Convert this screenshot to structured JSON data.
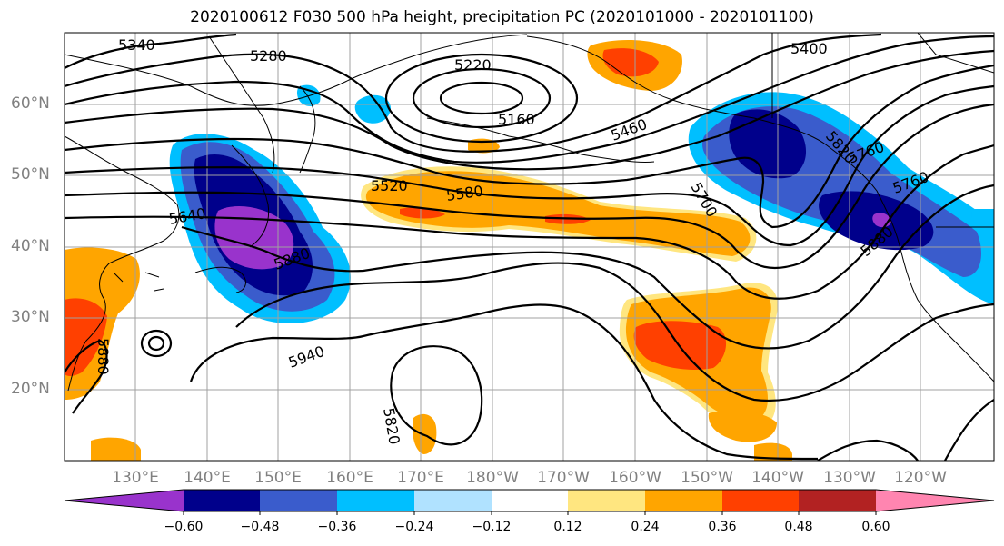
{
  "title": "2020100612 F030 500 hPa height, precipitation PC (2020101000 - 2020101100)",
  "lat_labels": [
    "60°N",
    "50°N",
    "40°N",
    "30°N",
    "20°N"
  ],
  "lon_labels": [
    "130°E",
    "140°E",
    "150°E",
    "160°E",
    "170°E",
    "180°W",
    "170°W",
    "160°W",
    "150°W",
    "140°W",
    "130°W",
    "120°W"
  ],
  "contour_labels": [
    "5340",
    "5280",
    "5220",
    "5160",
    "5400",
    "5460",
    "5520",
    "5580",
    "5640",
    "5700",
    "5760",
    "5820",
    "5880",
    "5940",
    "5820",
    "5880",
    "5880",
    "5760"
  ],
  "colorbar": {
    "tick_labels": [
      "−0.60",
      "−0.48",
      "−0.36",
      "−0.24",
      "−0.12",
      "0.12",
      "0.24",
      "0.36",
      "0.48",
      "0.60"
    ],
    "colors": [
      "#9933cc",
      "#00008b",
      "#3a5ccc",
      "#00bfff",
      "#b0e2ff",
      "#ffffff",
      "#ffe680",
      "#ffa500",
      "#ff4000",
      "#b22222",
      "#ff85b0"
    ]
  },
  "shading_colors": {
    "strong_negative": "#9933cc",
    "negative_3": "#00008b",
    "negative_2": "#3a5ccc",
    "negative_1": "#00bfff",
    "negative_0": "#b0e2ff",
    "positive_1": "#ffe680",
    "positive_2": "#ffa500",
    "positive_3": "#ff4000"
  }
}
